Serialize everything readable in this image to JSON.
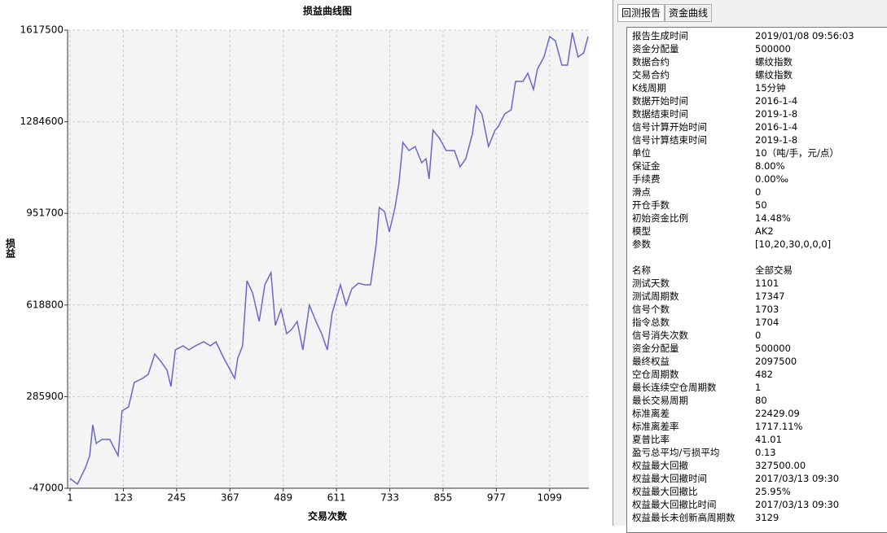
{
  "chart_data": {
    "type": "line",
    "title": "损益曲线图",
    "x_label": "交易次数",
    "y_label": "损益",
    "xlim": [
      1,
      1187
    ],
    "ylim": [
      -47000,
      1617500
    ],
    "xticks": [
      1,
      123,
      245,
      367,
      489,
      611,
      733,
      855,
      977,
      1099
    ],
    "yticks": [
      -47000,
      285900,
      618800,
      951700,
      1284600,
      1617500
    ],
    "grid": true,
    "series": [
      {
        "name": "损益",
        "color": "#6a67c9",
        "x": [
          1,
          18,
          36,
          46,
          53,
          61,
          74,
          92,
          111,
          120,
          135,
          148,
          167,
          180,
          195,
          210,
          223,
          232,
          242,
          260,
          273,
          288,
          307,
          322,
          335,
          353,
          363,
          378,
          385,
          396,
          406,
          419,
          434,
          447,
          461,
          471,
          484,
          497,
          508,
          521,
          534,
          549,
          564,
          577,
          590,
          601,
          620,
          633,
          646,
          661,
          676,
          689,
          702,
          709,
          721,
          732,
          745,
          754,
          763,
          777,
          791,
          806,
          816,
          823,
          832,
          847,
          862,
          881,
          894,
          907,
          922,
          931,
          944,
          959,
          974,
          982,
          996,
          1011,
          1021,
          1038,
          1049,
          1062,
          1071,
          1086,
          1099,
          1112,
          1127,
          1140,
          1151,
          1164,
          1177,
          1187
        ],
        "values": [
          -11500,
          -32200,
          26900,
          71300,
          183600,
          115600,
          130400,
          130400,
          71300,
          233900,
          248700,
          337300,
          352100,
          366900,
          440800,
          411300,
          381700,
          322600,
          455600,
          470400,
          455600,
          470400,
          485200,
          470400,
          485200,
          426000,
          396500,
          352100,
          426000,
          470400,
          706900,
          662600,
          559100,
          692100,
          736500,
          544300,
          603400,
          514700,
          529500,
          559100,
          455600,
          618200,
          559100,
          514700,
          455600,
          588600,
          692100,
          618200,
          677300,
          698000,
          692100,
          692100,
          840000,
          973000,
          958200,
          884300,
          973000,
          1061700,
          1209500,
          1179900,
          1194700,
          1135600,
          1150400,
          1076500,
          1253900,
          1224300,
          1179900,
          1179900,
          1120800,
          1150400,
          1239100,
          1342600,
          1313000,
          1194700,
          1253900,
          1268600,
          1313000,
          1327800,
          1431300,
          1431300,
          1460800,
          1401700,
          1475600,
          1519900,
          1593900,
          1579100,
          1490400,
          1490400,
          1608600,
          1519900,
          1534700,
          1593900
        ]
      }
    ]
  },
  "tabs": [
    "回测报告",
    "资金曲线"
  ],
  "report": {
    "sections": [
      {
        "rows": [
          [
            "报告生成时间",
            "2019/01/08 09:56:03"
          ],
          [
            "资金分配量",
            "500000"
          ],
          [
            "数据合约",
            "螺纹指数"
          ],
          [
            "交易合约",
            "螺纹指数"
          ],
          [
            "K线周期",
            "15分钟"
          ],
          [
            "数据开始时间",
            "2016-1-4"
          ],
          [
            "数据结束时间",
            "2019-1-8"
          ],
          [
            "信号计算开始时间",
            "2016-1-4"
          ],
          [
            "信号计算结束时间",
            "2019-1-8"
          ],
          [
            "单位",
            "10（吨/手，元/点）"
          ],
          [
            "保证金",
            "8.00%"
          ],
          [
            "手续费",
            "0.00‰"
          ],
          [
            "滑点",
            "0"
          ],
          [
            "开仓手数",
            "50"
          ],
          [
            "初始资金比例",
            "14.48%"
          ],
          [
            "模型",
            "AK2"
          ],
          [
            "参数",
            "[10,20,30,0,0,0]"
          ]
        ]
      },
      {
        "rows": [
          [
            "名称",
            "全部交易"
          ],
          [
            "测试天数",
            "1101"
          ],
          [
            "测试周期数",
            "17347"
          ],
          [
            "信号个数",
            "1703"
          ],
          [
            "指令总数",
            "1704"
          ],
          [
            "信号消失次数",
            "0"
          ],
          [
            "资金分配量",
            "500000"
          ],
          [
            "最终权益",
            "2097500"
          ],
          [
            "空仓周期数",
            "482"
          ],
          [
            "最长连续空仓周期数",
            "1"
          ],
          [
            "最长交易周期",
            "80"
          ],
          [
            "标准离差",
            "22429.09"
          ],
          [
            "标准离差率",
            "1717.11%"
          ],
          [
            "夏普比率",
            "41.01"
          ],
          [
            "盈亏总平均/亏损平均",
            "0.13"
          ],
          [
            "权益最大回撤",
            "327500.00"
          ],
          [
            "权益最大回撤时间",
            "2017/03/13 09:30"
          ],
          [
            "权益最大回撤比",
            "25.95%"
          ],
          [
            "权益最大回撤比时间",
            "2017/03/13 09:30"
          ],
          [
            "权益最长未创新高周期数",
            "3129"
          ]
        ]
      }
    ]
  }
}
